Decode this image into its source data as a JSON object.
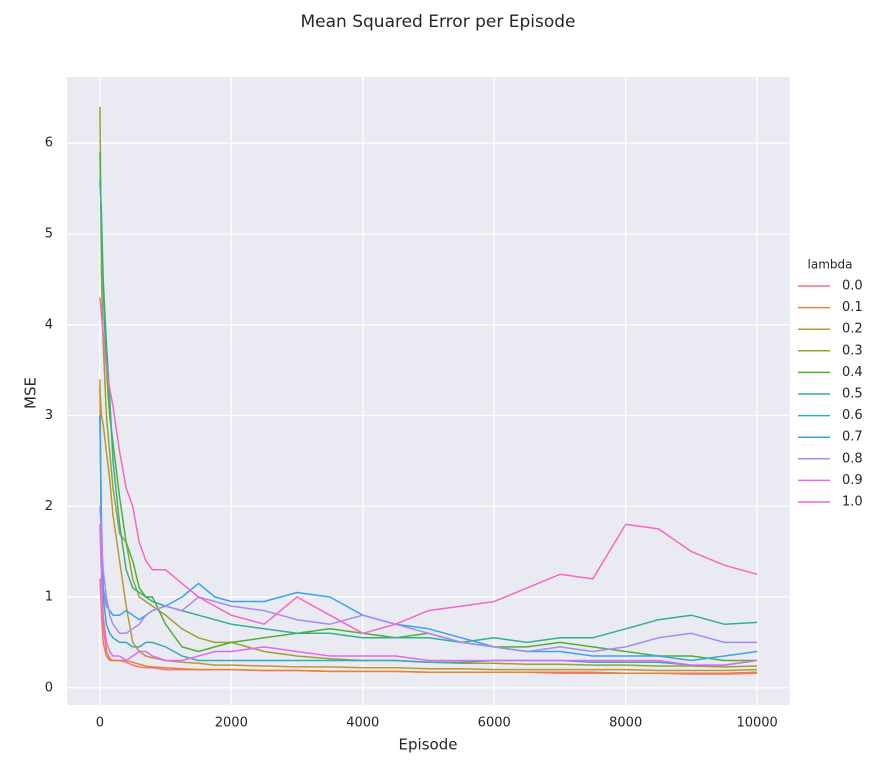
{
  "chart_data": {
    "type": "line",
    "title": "Mean Squared Error per Episode",
    "xlabel": "Episode",
    "ylabel": "MSE",
    "legend_title": "lambda",
    "legend": "right",
    "grid": true,
    "xlim": [
      -500,
      10500
    ],
    "ylim": [
      -0.19,
      6.73
    ],
    "xticks": [
      0,
      2000,
      4000,
      6000,
      8000,
      10000
    ],
    "yticks": [
      0,
      1,
      2,
      3,
      4,
      5,
      6
    ],
    "x": [
      0,
      25,
      50,
      100,
      150,
      200,
      300,
      400,
      500,
      600,
      700,
      800,
      1000,
      1250,
      1500,
      1750,
      2000,
      2500,
      3000,
      3500,
      4000,
      4500,
      5000,
      5500,
      6000,
      6500,
      7000,
      7500,
      8000,
      8500,
      9000,
      9500,
      10000
    ],
    "series": [
      {
        "name": "0.0",
        "color": "#f77189",
        "values": [
          1.2,
          0.8,
          0.5,
          0.35,
          0.3,
          0.3,
          0.3,
          0.28,
          0.25,
          0.23,
          0.22,
          0.22,
          0.2,
          0.2,
          0.2,
          0.2,
          0.2,
          0.19,
          0.19,
          0.18,
          0.18,
          0.18,
          0.17,
          0.17,
          0.17,
          0.17,
          0.16,
          0.16,
          0.16,
          0.16,
          0.15,
          0.15,
          0.16
        ]
      },
      {
        "name": "0.1",
        "color": "#e18632",
        "values": [
          3.4,
          1.5,
          0.7,
          0.4,
          0.32,
          0.3,
          0.3,
          0.3,
          0.28,
          0.26,
          0.24,
          0.23,
          0.22,
          0.21,
          0.2,
          0.2,
          0.2,
          0.19,
          0.19,
          0.18,
          0.18,
          0.18,
          0.17,
          0.17,
          0.17,
          0.17,
          0.17,
          0.17,
          0.16,
          0.16,
          0.16,
          0.16,
          0.17
        ]
      },
      {
        "name": "0.2",
        "color": "#bb9832",
        "values": [
          3.3,
          3.0,
          2.9,
          2.6,
          2.3,
          1.9,
          1.4,
          0.9,
          0.5,
          0.4,
          0.35,
          0.33,
          0.3,
          0.28,
          0.27,
          0.25,
          0.25,
          0.24,
          0.23,
          0.23,
          0.22,
          0.22,
          0.21,
          0.21,
          0.2,
          0.2,
          0.2,
          0.2,
          0.2,
          0.19,
          0.19,
          0.19,
          0.2
        ]
      },
      {
        "name": "0.3",
        "color": "#97a431",
        "values": [
          6.4,
          4.5,
          3.8,
          3.0,
          2.6,
          2.2,
          1.7,
          1.6,
          1.2,
          1.0,
          0.95,
          0.9,
          0.8,
          0.65,
          0.55,
          0.5,
          0.5,
          0.4,
          0.35,
          0.32,
          0.3,
          0.3,
          0.28,
          0.27,
          0.27,
          0.26,
          0.26,
          0.25,
          0.25,
          0.24,
          0.24,
          0.23,
          0.24
        ]
      },
      {
        "name": "0.4",
        "color": "#50b131",
        "values": [
          5.9,
          5.0,
          4.4,
          3.5,
          3.0,
          2.7,
          2.1,
          1.6,
          1.4,
          1.1,
          1.0,
          1.0,
          0.7,
          0.45,
          0.4,
          0.45,
          0.5,
          0.55,
          0.6,
          0.65,
          0.6,
          0.55,
          0.6,
          0.5,
          0.45,
          0.45,
          0.5,
          0.45,
          0.4,
          0.35,
          0.35,
          0.3,
          0.3
        ]
      },
      {
        "name": "0.5",
        "color": "#34ae91",
        "values": [
          5.6,
          5.2,
          4.5,
          3.8,
          3.2,
          2.5,
          1.8,
          1.3,
          1.1,
          1.05,
          1.0,
          0.95,
          0.9,
          0.85,
          0.8,
          0.75,
          0.7,
          0.65,
          0.6,
          0.6,
          0.55,
          0.55,
          0.55,
          0.5,
          0.55,
          0.5,
          0.55,
          0.55,
          0.65,
          0.75,
          0.8,
          0.7,
          0.72
        ]
      },
      {
        "name": "0.6",
        "color": "#37abb4",
        "values": [
          3.0,
          1.5,
          1.0,
          0.7,
          0.6,
          0.55,
          0.5,
          0.5,
          0.45,
          0.45,
          0.5,
          0.5,
          0.45,
          0.35,
          0.3,
          0.3,
          0.3,
          0.3,
          0.3,
          0.3,
          0.3,
          0.3,
          0.28,
          0.28,
          0.3,
          0.3,
          0.3,
          0.28,
          0.28,
          0.28,
          0.25,
          0.25,
          0.3
        ]
      },
      {
        "name": "0.7",
        "color": "#3ba3ec",
        "values": [
          3.0,
          1.8,
          1.1,
          0.9,
          0.85,
          0.8,
          0.8,
          0.85,
          0.8,
          0.75,
          0.8,
          0.85,
          0.9,
          1.0,
          1.15,
          1.0,
          0.95,
          0.95,
          1.05,
          1.0,
          0.8,
          0.7,
          0.65,
          0.55,
          0.45,
          0.4,
          0.4,
          0.35,
          0.35,
          0.35,
          0.3,
          0.35,
          0.4
        ]
      },
      {
        "name": "0.8",
        "color": "#a48cf4",
        "values": [
          2.0,
          1.6,
          1.3,
          1.0,
          0.8,
          0.7,
          0.6,
          0.6,
          0.65,
          0.7,
          0.8,
          0.85,
          0.9,
          0.85,
          1.0,
          0.95,
          0.9,
          0.85,
          0.75,
          0.7,
          0.8,
          0.7,
          0.6,
          0.5,
          0.45,
          0.4,
          0.45,
          0.4,
          0.45,
          0.55,
          0.6,
          0.5,
          0.5
        ]
      },
      {
        "name": "0.9",
        "color": "#e866f4",
        "values": [
          1.8,
          1.2,
          0.8,
          0.5,
          0.4,
          0.35,
          0.35,
          0.3,
          0.35,
          0.4,
          0.4,
          0.35,
          0.3,
          0.3,
          0.35,
          0.4,
          0.4,
          0.45,
          0.4,
          0.35,
          0.35,
          0.35,
          0.3,
          0.3,
          0.3,
          0.3,
          0.3,
          0.3,
          0.3,
          0.3,
          0.25,
          0.25,
          0.3
        ]
      },
      {
        "name": "1.0",
        "color": "#f668c2",
        "values": [
          4.3,
          4.1,
          3.9,
          3.5,
          3.3,
          3.1,
          2.6,
          2.2,
          2.0,
          1.6,
          1.4,
          1.3,
          1.3,
          1.15,
          1.0,
          0.9,
          0.8,
          0.7,
          1.0,
          0.8,
          0.6,
          0.7,
          0.85,
          0.9,
          0.95,
          1.1,
          1.25,
          1.2,
          1.8,
          1.75,
          1.5,
          1.35,
          1.25
        ]
      }
    ]
  }
}
